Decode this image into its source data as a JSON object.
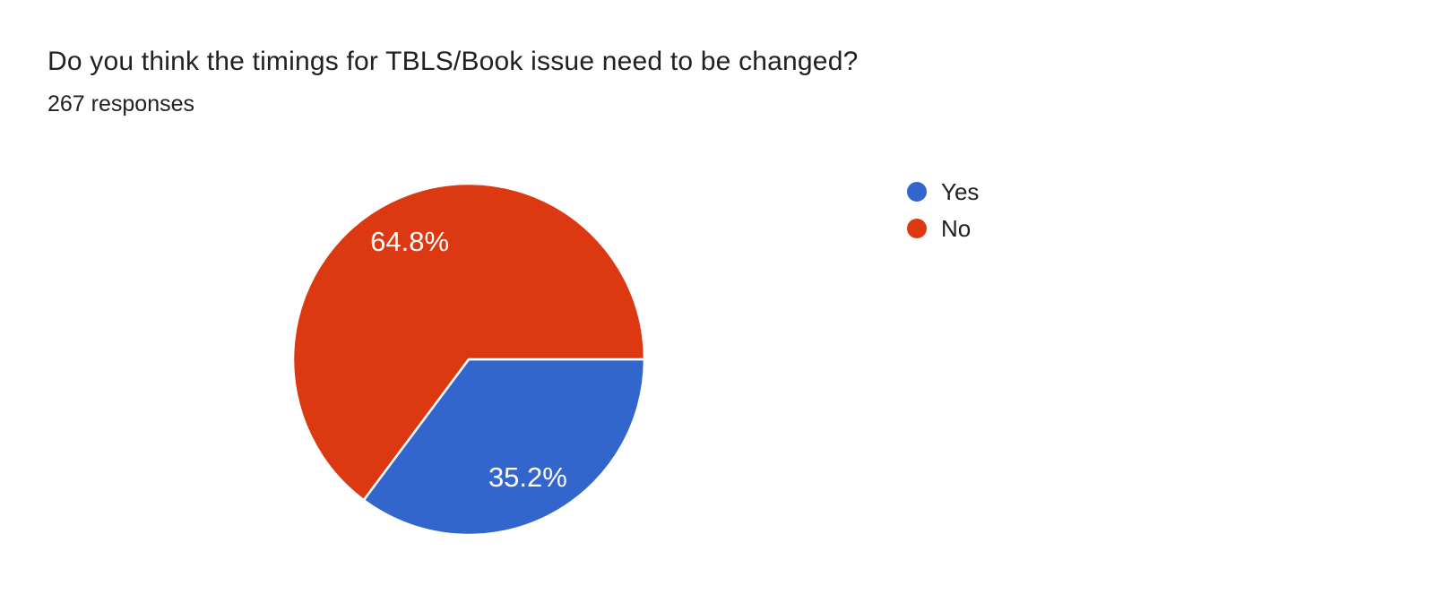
{
  "page": {
    "background_color": "#ffffff"
  },
  "header": {
    "title": "Do you think the timings for TBLS/Book issue need to be changed?",
    "subtitle": "267 responses",
    "response_count": 267
  },
  "chart_data": {
    "type": "pie",
    "title": "Do you think the timings for TBLS/Book issue need to be changed?",
    "subtitle": "267 responses",
    "categories": [
      "Yes",
      "No"
    ],
    "values": [
      35.2,
      64.8
    ],
    "slices": [
      {
        "name": "Yes",
        "percent": 35.2,
        "percent_label": "35.2%",
        "color": "#3366CC"
      },
      {
        "name": "No",
        "percent": 64.8,
        "percent_label": "64.8%",
        "color": "#DC3912"
      }
    ],
    "start_angle_deg": 0,
    "direction": "clockwise",
    "slice_border_color": "#ffffff",
    "slice_border_width": 2.5,
    "label_color": "#ffffff",
    "label_radius_ratio": 0.75,
    "legend_position": "right",
    "legend_text_color": "#202124"
  }
}
